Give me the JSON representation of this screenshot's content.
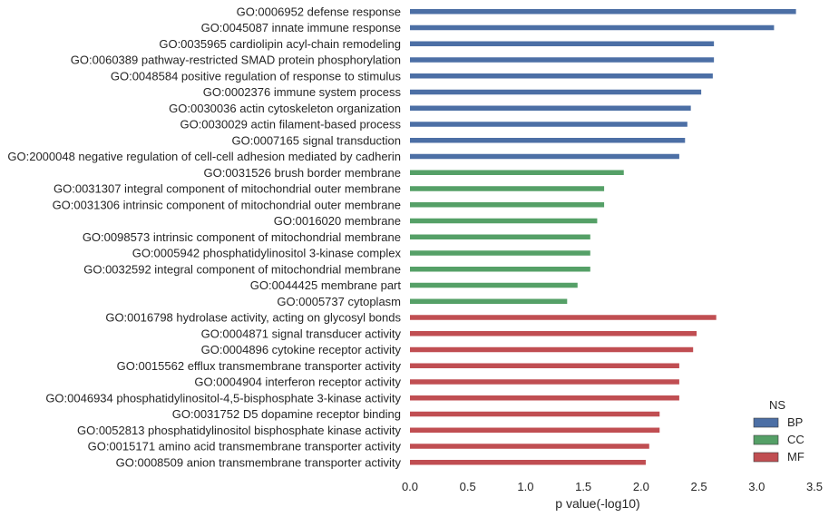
{
  "chart_data": {
    "type": "bar",
    "orientation": "horizontal",
    "xlabel": "p value(-log10)",
    "xlim": [
      0,
      3.5
    ],
    "xticks": [
      0.0,
      0.5,
      1.0,
      1.5,
      2.0,
      2.5,
      3.0,
      3.5
    ],
    "xtick_labels": [
      "0.0",
      "0.5",
      "1.0",
      "1.5",
      "2.0",
      "2.5",
      "3.0",
      "3.5"
    ],
    "grid": false,
    "legend": {
      "title": "NS",
      "position": "bottom-right",
      "entries": [
        {
          "name": "BP",
          "color": "#4c6fa5"
        },
        {
          "name": "CC",
          "color": "#55a067"
        },
        {
          "name": "MF",
          "color": "#c04e52"
        }
      ]
    },
    "categories": [
      {
        "label": "GO:0006952 defense response",
        "value": 3.34,
        "group": "BP"
      },
      {
        "label": "GO:0045087 innate immune response",
        "value": 3.15,
        "group": "BP"
      },
      {
        "label": "GO:0035965 cardiolipin acyl-chain remodeling",
        "value": 2.63,
        "group": "BP"
      },
      {
        "label": "GO:0060389 pathway-restricted SMAD protein phosphorylation",
        "value": 2.63,
        "group": "BP"
      },
      {
        "label": "GO:0048584 positive regulation of response to stimulus",
        "value": 2.62,
        "group": "BP"
      },
      {
        "label": "GO:0002376 immune system process",
        "value": 2.52,
        "group": "BP"
      },
      {
        "label": "GO:0030036 actin cytoskeleton organization",
        "value": 2.43,
        "group": "BP"
      },
      {
        "label": "GO:0030029 actin filament-based process",
        "value": 2.4,
        "group": "BP"
      },
      {
        "label": "GO:0007165 signal transduction",
        "value": 2.38,
        "group": "BP"
      },
      {
        "label": "GO:2000048 negative regulation of cell-cell adhesion mediated by cadherin",
        "value": 2.33,
        "group": "BP"
      },
      {
        "label": "GO:0031526 brush border membrane",
        "value": 1.85,
        "group": "CC"
      },
      {
        "label": "GO:0031307 integral component of mitochondrial outer membrane",
        "value": 1.68,
        "group": "CC"
      },
      {
        "label": "GO:0031306 intrinsic component of mitochondrial outer membrane",
        "value": 1.68,
        "group": "CC"
      },
      {
        "label": "GO:0016020 membrane",
        "value": 1.62,
        "group": "CC"
      },
      {
        "label": "GO:0098573 intrinsic component of mitochondrial membrane",
        "value": 1.56,
        "group": "CC"
      },
      {
        "label": "GO:0005942 phosphatidylinositol 3-kinase complex",
        "value": 1.56,
        "group": "CC"
      },
      {
        "label": "GO:0032592 integral component of mitochondrial membrane",
        "value": 1.56,
        "group": "CC"
      },
      {
        "label": "GO:0044425 membrane part",
        "value": 1.45,
        "group": "CC"
      },
      {
        "label": "GO:0005737 cytoplasm",
        "value": 1.36,
        "group": "CC"
      },
      {
        "label": "GO:0016798 hydrolase activity, acting on glycosyl bonds",
        "value": 2.65,
        "group": "MF"
      },
      {
        "label": "GO:0004871 signal transducer activity",
        "value": 2.48,
        "group": "MF"
      },
      {
        "label": "GO:0004896 cytokine receptor activity",
        "value": 2.45,
        "group": "MF"
      },
      {
        "label": "GO:0015562 efflux transmembrane transporter activity",
        "value": 2.33,
        "group": "MF"
      },
      {
        "label": "GO:0004904 interferon receptor activity",
        "value": 2.33,
        "group": "MF"
      },
      {
        "label": "GO:0046934 phosphatidylinositol-4,5-bisphosphate 3-kinase activity",
        "value": 2.33,
        "group": "MF"
      },
      {
        "label": "GO:0031752 D5 dopamine receptor binding",
        "value": 2.16,
        "group": "MF"
      },
      {
        "label": "GO:0052813 phosphatidylinositol bisphosphate kinase activity",
        "value": 2.16,
        "group": "MF"
      },
      {
        "label": "GO:0015171 amino acid transmembrane transporter activity",
        "value": 2.07,
        "group": "MF"
      },
      {
        "label": "GO:0008509 anion transmembrane transporter activity",
        "value": 2.04,
        "group": "MF"
      }
    ]
  }
}
